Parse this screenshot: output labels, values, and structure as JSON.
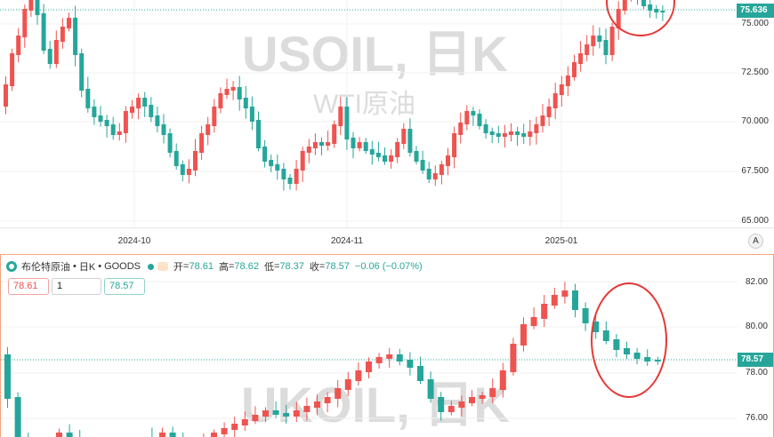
{
  "top_chart": {
    "watermark_symbol": "USOIL, 日K",
    "watermark_name": "WTI原油",
    "price_ticks": [
      "75.000",
      "72.500",
      "70.000",
      "67.500",
      "65.000"
    ],
    "time_ticks": [
      "2024-10",
      "2024-11",
      "2025-01"
    ],
    "last_price": "75.636",
    "axis_mode_label": "A",
    "colors": {
      "up": "#ef5350",
      "down": "#26a69a",
      "last_tag": "#26a69a",
      "annotation": "#e53935"
    }
  },
  "bottom_chart": {
    "legend": {
      "symbol": "布伦特原油",
      "interval": "日K",
      "exchange": "GOODS",
      "separator": "•",
      "open_label": "开",
      "open": "78.61",
      "high_label": "高",
      "high": "78.62",
      "low_label": "低",
      "low": "78.37",
      "close_label": "收",
      "close": "78.57",
      "change": "−0.06 (−0.07%)"
    },
    "trade": {
      "sell_price": "78.61",
      "quantity": "1",
      "buy_price": "78.57"
    },
    "watermark_symbol": "UKOIL, 日K",
    "price_ticks": [
      "82.00",
      "80.00",
      "78.00",
      "76.00"
    ],
    "last_price": "78.57"
  }
}
